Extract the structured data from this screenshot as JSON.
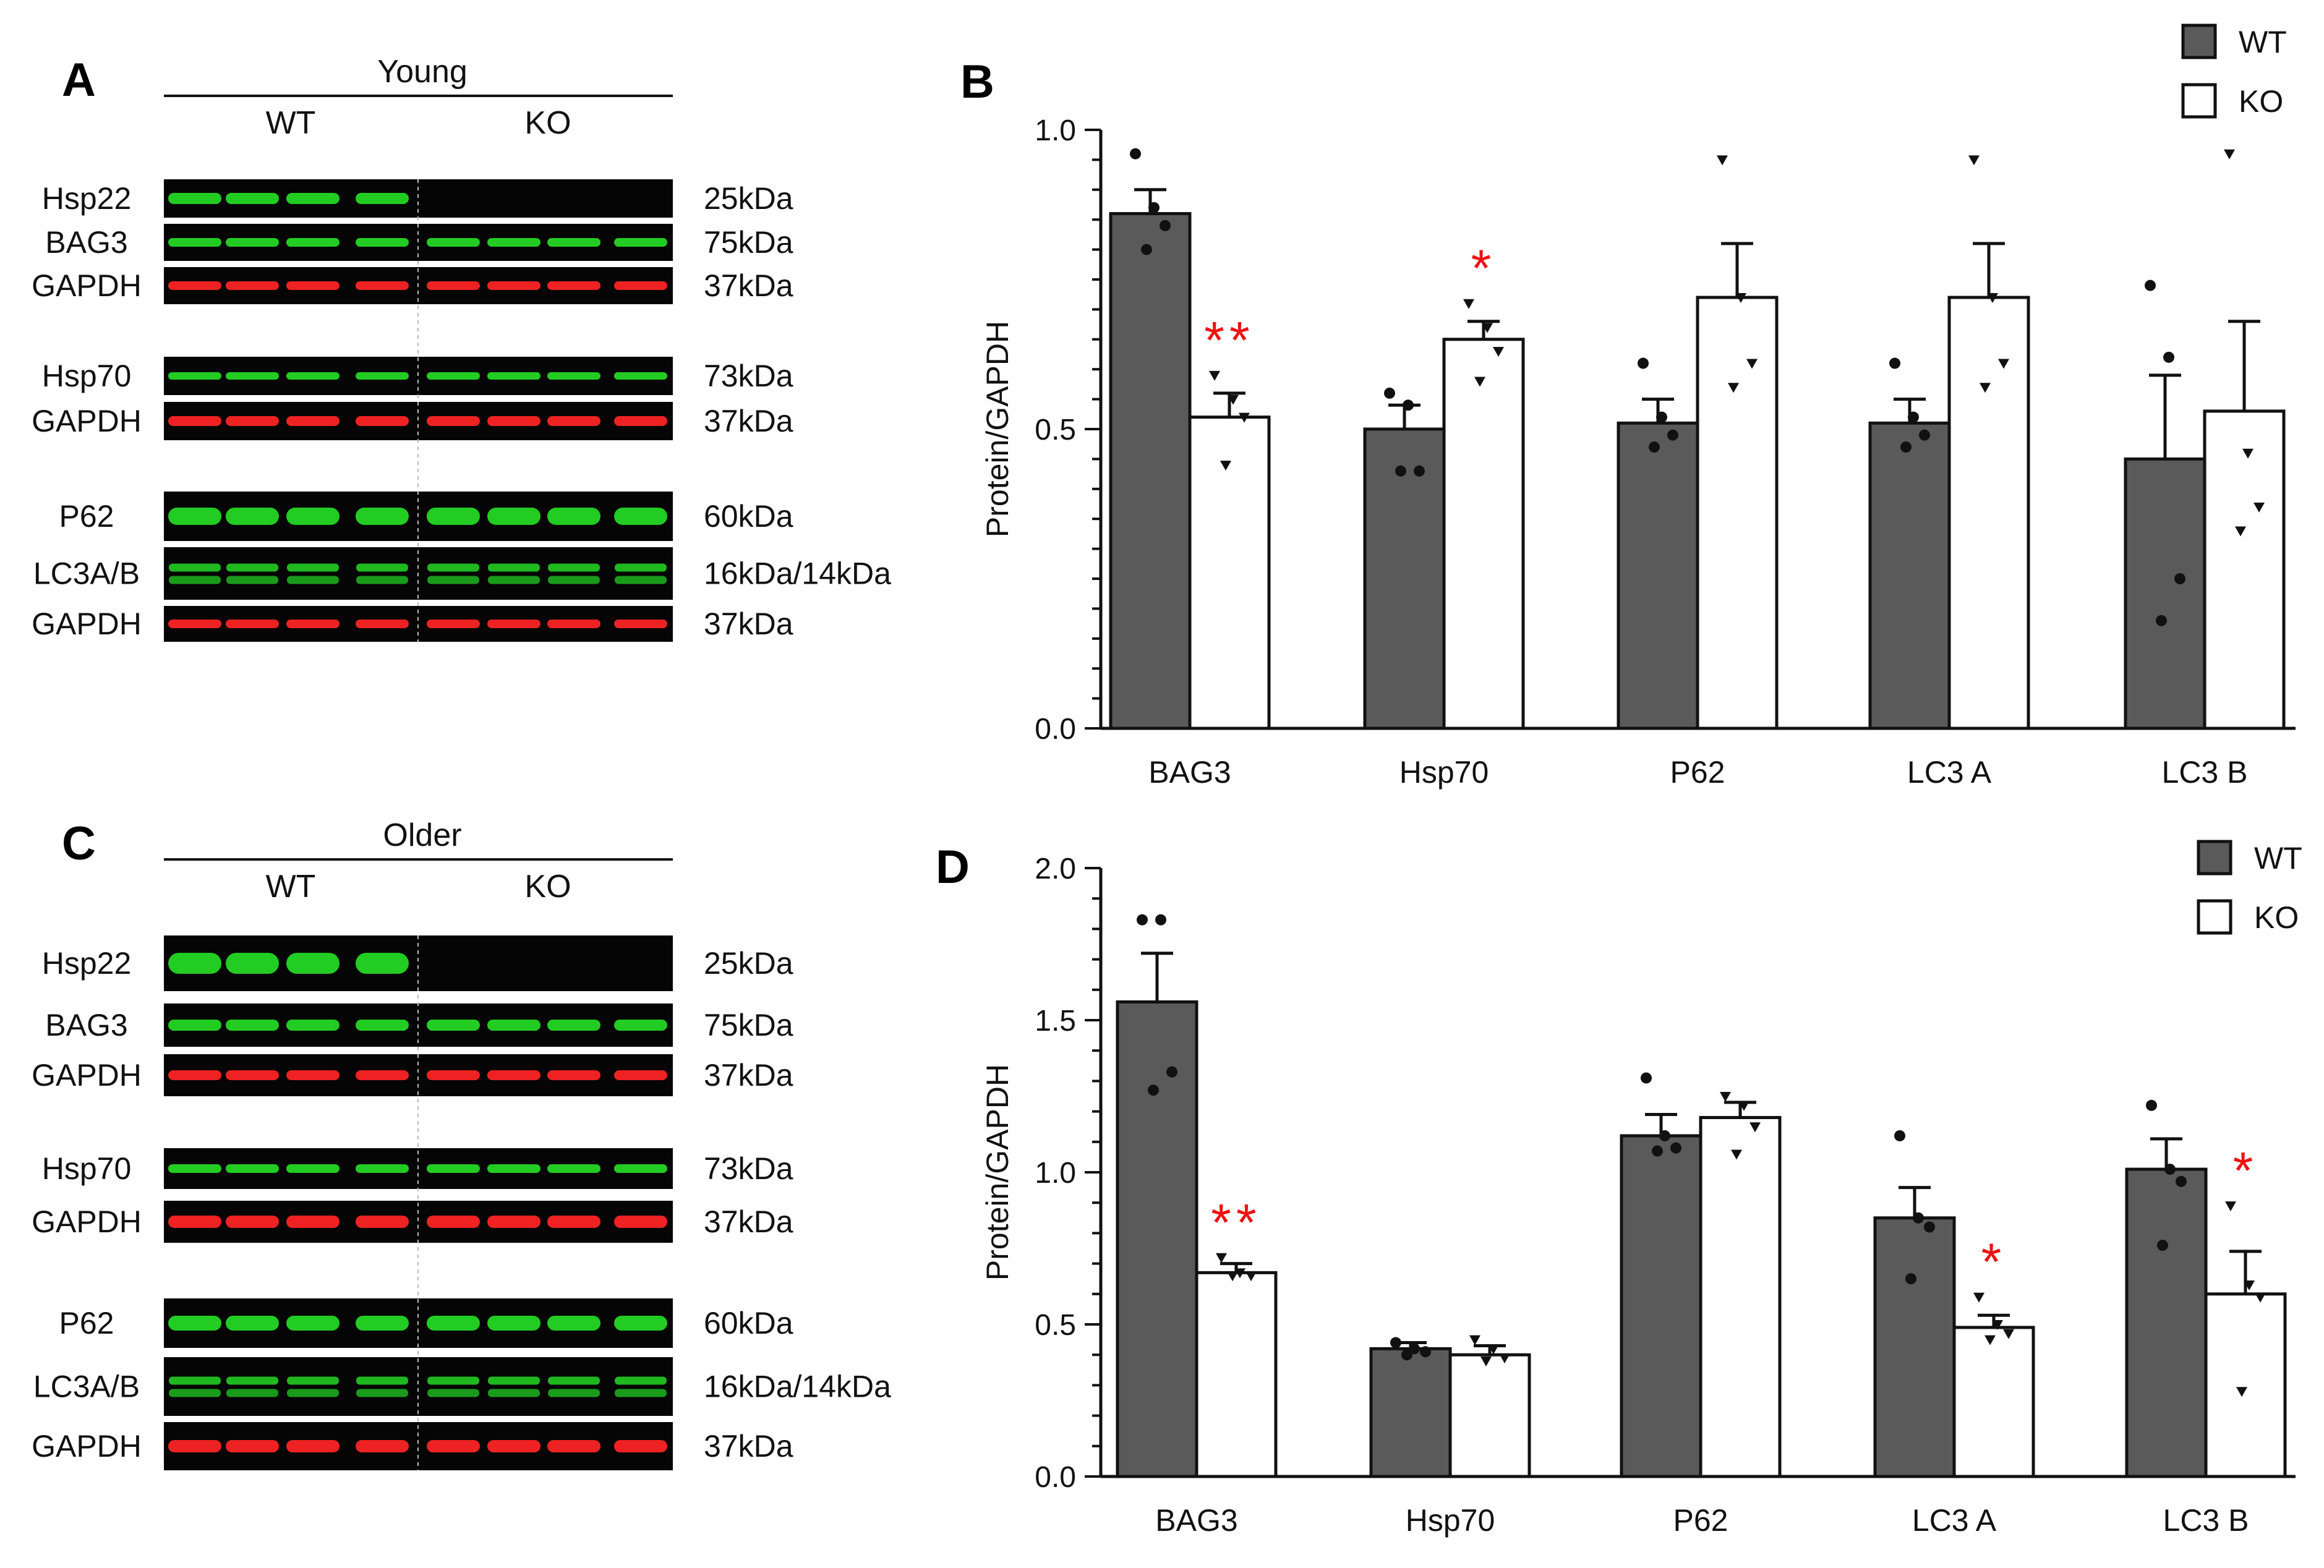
{
  "colors": {
    "wt": "#5a5a5a",
    "ko": "#ffffff",
    "sig": "#ee1111",
    "blot_bg": "#050505",
    "green": "#22cc22",
    "red": "#ee2222"
  },
  "panel_a": {
    "letter": "A",
    "group_title": "Young",
    "wt_label": "WT",
    "ko_label": "KO",
    "rows": [
      {
        "name": "Hsp22",
        "size": "25kDa",
        "color": "green"
      },
      {
        "name": "BAG3",
        "size": "75kDa",
        "color": "green"
      },
      {
        "name": "GAPDH",
        "size": "37kDa",
        "color": "red"
      },
      {
        "name": "Hsp70",
        "size": "73kDa",
        "color": "green"
      },
      {
        "name": "GAPDH",
        "size": "37kDa",
        "color": "red"
      },
      {
        "name": "P62",
        "size": "60kDa",
        "color": "green"
      },
      {
        "name": "LC3A/B",
        "size": "16kDa/14kDa",
        "color": "green"
      },
      {
        "name": "GAPDH",
        "size": "37kDa",
        "color": "red"
      }
    ]
  },
  "panel_c": {
    "letter": "C",
    "group_title": "Older",
    "wt_label": "WT",
    "ko_label": "KO",
    "rows": [
      {
        "name": "Hsp22",
        "size": "25kDa",
        "color": "green"
      },
      {
        "name": "BAG3",
        "size": "75kDa",
        "color": "green"
      },
      {
        "name": "GAPDH",
        "size": "37kDa",
        "color": "red"
      },
      {
        "name": "Hsp70",
        "size": "73kDa",
        "color": "green"
      },
      {
        "name": "GAPDH",
        "size": "37kDa",
        "color": "red"
      },
      {
        "name": "P62",
        "size": "60kDa",
        "color": "green"
      },
      {
        "name": "LC3A/B",
        "size": "16kDa/14kDa",
        "color": "green"
      },
      {
        "name": "GAPDH",
        "size": "37kDa",
        "color": "red"
      }
    ]
  },
  "chart_data": [
    {
      "panel": "B",
      "type": "bar",
      "title": "",
      "xlabel": "",
      "ylabel": "Protein/GAPDH",
      "ylim": [
        0,
        1.0
      ],
      "yticks": [
        "0.0",
        "0.5",
        "1.0"
      ],
      "categories": [
        "BAG3",
        "Hsp70",
        "P62",
        "LC3 A",
        "LC3 B"
      ],
      "legend": [
        "WT",
        "KO"
      ],
      "series": [
        {
          "name": "WT",
          "values": [
            0.86,
            0.5,
            0.51,
            0.51,
            0.45
          ],
          "errors": [
            0.04,
            0.04,
            0.04,
            0.04,
            0.14
          ],
          "points": [
            [
              0.96,
              0.87,
              0.84,
              0.8
            ],
            [
              0.56,
              0.54,
              0.43,
              0.43
            ],
            [
              0.61,
              0.52,
              0.49,
              0.47
            ],
            [
              0.61,
              0.52,
              0.49,
              0.47
            ],
            [
              0.74,
              0.62,
              0.25,
              0.18
            ]
          ]
        },
        {
          "name": "KO",
          "values": [
            0.52,
            0.65,
            0.72,
            0.72,
            0.53
          ],
          "errors": [
            0.04,
            0.03,
            0.09,
            0.09,
            0.15
          ],
          "points": [
            [
              0.59,
              0.55,
              0.52,
              0.44
            ],
            [
              0.71,
              0.67,
              0.63,
              0.58
            ],
            [
              0.95,
              0.72,
              0.61,
              0.57
            ],
            [
              0.95,
              0.72,
              0.61,
              0.57
            ],
            [
              0.96,
              0.46,
              0.37,
              0.33
            ]
          ]
        }
      ],
      "significance": [
        {
          "category": "BAG3",
          "series": "KO",
          "label": "**"
        },
        {
          "category": "Hsp70",
          "series": "KO",
          "label": "*"
        }
      ]
    },
    {
      "panel": "D",
      "type": "bar",
      "title": "",
      "xlabel": "",
      "ylabel": "Protein/GAPDH",
      "ylim": [
        0,
        2.0
      ],
      "yticks": [
        "0.0",
        "0.5",
        "1.0",
        "1.5",
        "2.0"
      ],
      "categories": [
        "BAG3",
        "Hsp70",
        "P62",
        "LC3 A",
        "LC3 B"
      ],
      "legend": [
        "WT",
        "KO"
      ],
      "series": [
        {
          "name": "WT",
          "values": [
            1.56,
            0.42,
            1.12,
            0.85,
            1.01
          ],
          "errors": [
            0.16,
            0.02,
            0.07,
            0.1,
            0.1
          ],
          "points": [
            [
              1.83,
              1.83,
              1.33,
              1.27
            ],
            [
              0.44,
              0.42,
              0.41,
              0.4
            ],
            [
              1.31,
              1.12,
              1.08,
              1.07
            ],
            [
              1.12,
              0.85,
              0.82,
              0.65
            ],
            [
              1.22,
              1.01,
              0.97,
              0.76
            ]
          ]
        },
        {
          "name": "KO",
          "values": [
            0.67,
            0.4,
            1.18,
            0.49,
            0.6
          ],
          "errors": [
            0.03,
            0.03,
            0.05,
            0.04,
            0.14
          ],
          "points": [
            [
              0.72,
              0.67,
              0.66,
              0.66
            ],
            [
              0.45,
              0.42,
              0.39,
              0.38
            ],
            [
              1.25,
              1.22,
              1.15,
              1.06
            ],
            [
              0.59,
              0.5,
              0.47,
              0.45
            ],
            [
              0.89,
              0.63,
              0.59,
              0.28
            ]
          ]
        }
      ],
      "significance": [
        {
          "category": "BAG3",
          "series": "KO",
          "label": "**"
        },
        {
          "category": "LC3 A",
          "series": "KO",
          "label": "*"
        },
        {
          "category": "LC3 B",
          "series": "KO",
          "label": "*"
        }
      ]
    }
  ]
}
